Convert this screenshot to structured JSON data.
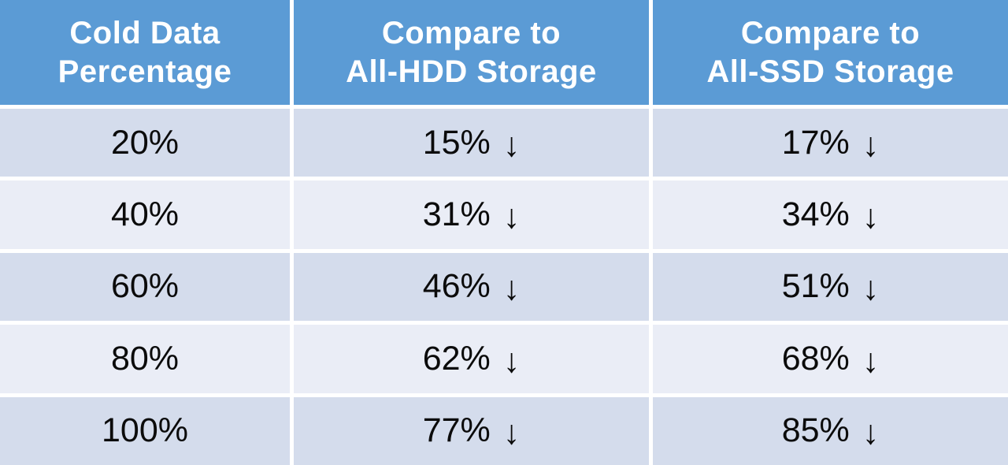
{
  "colors": {
    "header_bg": "#5B9BD5",
    "header_text": "#FFFFFF",
    "row_band_dark": "#D4DCEC",
    "row_band_light": "#EAEDF6",
    "cell_text": "#0B0B0B",
    "divider": "#FFFFFF"
  },
  "table": {
    "headers": [
      {
        "label": "Cold Data\nPercentage"
      },
      {
        "label": "Compare to\nAll-HDD Storage"
      },
      {
        "label": "Compare to\nAll-SSD Storage"
      }
    ],
    "rows": [
      {
        "cold": "20%",
        "hdd": {
          "value": "15%",
          "arrow": "↓"
        },
        "ssd": {
          "value": "17%",
          "arrow": "↓"
        }
      },
      {
        "cold": "40%",
        "hdd": {
          "value": "31%",
          "arrow": "↓"
        },
        "ssd": {
          "value": "34%",
          "arrow": "↓"
        }
      },
      {
        "cold": "60%",
        "hdd": {
          "value": "46%",
          "arrow": "↓"
        },
        "ssd": {
          "value": "51%",
          "arrow": "↓"
        }
      },
      {
        "cold": "80%",
        "hdd": {
          "value": "62%",
          "arrow": "↓"
        },
        "ssd": {
          "value": "68%",
          "arrow": "↓"
        }
      },
      {
        "cold": "100%",
        "hdd": {
          "value": "77%",
          "arrow": "↓"
        },
        "ssd": {
          "value": "85%",
          "arrow": "↓"
        }
      }
    ]
  },
  "chart_data": {
    "type": "table",
    "columns": [
      "Cold Data Percentage",
      "Compare to All-HDD Storage",
      "Compare to All-SSD Storage"
    ],
    "rows": [
      [
        "20%",
        "15% ↓",
        "17% ↓"
      ],
      [
        "40%",
        "31% ↓",
        "34% ↓"
      ],
      [
        "60%",
        "46% ↓",
        "51% ↓"
      ],
      [
        "80%",
        "62% ↓",
        "68% ↓"
      ],
      [
        "100%",
        "77% ↓",
        "85% ↓"
      ]
    ],
    "series": [
      {
        "name": "Cold Data Percentage",
        "values": [
          20,
          40,
          60,
          80,
          100
        ]
      },
      {
        "name": "Compare to All-HDD Storage (% ↓)",
        "values": [
          15,
          31,
          46,
          62,
          77
        ]
      },
      {
        "name": "Compare to All-SSD Storage (% ↓)",
        "values": [
          17,
          34,
          51,
          68,
          85
        ]
      }
    ],
    "legend_position": "none",
    "grid": false
  }
}
